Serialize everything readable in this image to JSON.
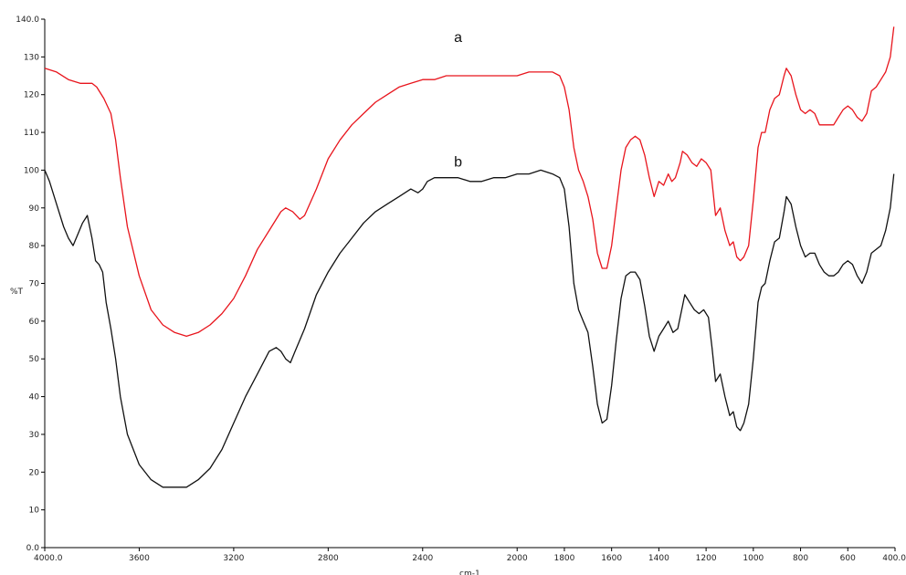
{
  "chart_data": {
    "type": "line",
    "xlabel": "cm-1",
    "ylabel": "%T",
    "xlim": [
      4000,
      400
    ],
    "ylim": [
      0,
      140
    ],
    "x_ticks": [
      "4000.0",
      "3600",
      "3200",
      "2800",
      "2400",
      "2000",
      "1600",
      "1200",
      "800",
      "400.0"
    ],
    "x_tick_values": [
      4000,
      3600,
      3200,
      2800,
      2400,
      2000,
      1600,
      1200,
      800,
      400
    ],
    "extra_x_ticks": [
      "1800",
      "1400",
      "1000",
      "600"
    ],
    "extra_x_tick_values": [
      1800,
      1400,
      1000,
      600
    ],
    "y_ticks": [
      "0.0",
      "10",
      "20",
      "30",
      "40",
      "50",
      "60",
      "70",
      "80",
      "90",
      "100",
      "110",
      "120",
      "130",
      "140.0"
    ],
    "y_tick_values": [
      0,
      10,
      20,
      30,
      40,
      50,
      60,
      70,
      80,
      90,
      100,
      110,
      120,
      130,
      140
    ],
    "grid": false,
    "series": [
      {
        "name": "a",
        "color": "#e8141c",
        "label_at": [
          2250,
          134
        ],
        "points": [
          [
            4000,
            127
          ],
          [
            3950,
            126
          ],
          [
            3900,
            124
          ],
          [
            3850,
            123
          ],
          [
            3800,
            123
          ],
          [
            3780,
            122
          ],
          [
            3750,
            119
          ],
          [
            3720,
            115
          ],
          [
            3700,
            108
          ],
          [
            3680,
            98
          ],
          [
            3650,
            85
          ],
          [
            3600,
            72
          ],
          [
            3550,
            63
          ],
          [
            3500,
            59
          ],
          [
            3450,
            57
          ],
          [
            3400,
            56
          ],
          [
            3350,
            57
          ],
          [
            3300,
            59
          ],
          [
            3250,
            62
          ],
          [
            3200,
            66
          ],
          [
            3150,
            72
          ],
          [
            3100,
            79
          ],
          [
            3050,
            84
          ],
          [
            3000,
            89
          ],
          [
            2980,
            90
          ],
          [
            2950,
            89
          ],
          [
            2920,
            87
          ],
          [
            2900,
            88
          ],
          [
            2850,
            95
          ],
          [
            2800,
            103
          ],
          [
            2750,
            108
          ],
          [
            2700,
            112
          ],
          [
            2650,
            115
          ],
          [
            2600,
            118
          ],
          [
            2550,
            120
          ],
          [
            2500,
            122
          ],
          [
            2450,
            123
          ],
          [
            2400,
            124
          ],
          [
            2380,
            124
          ],
          [
            2350,
            124
          ],
          [
            2300,
            125
          ],
          [
            2250,
            125
          ],
          [
            2200,
            125
          ],
          [
            2100,
            125
          ],
          [
            2000,
            125
          ],
          [
            1950,
            126
          ],
          [
            1900,
            126
          ],
          [
            1850,
            126
          ],
          [
            1820,
            125
          ],
          [
            1800,
            122
          ],
          [
            1780,
            116
          ],
          [
            1760,
            106
          ],
          [
            1740,
            100
          ],
          [
            1720,
            97
          ],
          [
            1700,
            93
          ],
          [
            1680,
            87
          ],
          [
            1660,
            78
          ],
          [
            1640,
            74
          ],
          [
            1620,
            74
          ],
          [
            1600,
            80
          ],
          [
            1580,
            90
          ],
          [
            1560,
            100
          ],
          [
            1540,
            106
          ],
          [
            1520,
            108
          ],
          [
            1500,
            109
          ],
          [
            1480,
            108
          ],
          [
            1460,
            104
          ],
          [
            1440,
            98
          ],
          [
            1420,
            93
          ],
          [
            1400,
            97
          ],
          [
            1380,
            96
          ],
          [
            1360,
            99
          ],
          [
            1345,
            97
          ],
          [
            1330,
            98
          ],
          [
            1310,
            102
          ],
          [
            1300,
            105
          ],
          [
            1280,
            104
          ],
          [
            1260,
            102
          ],
          [
            1240,
            101
          ],
          [
            1220,
            103
          ],
          [
            1200,
            102
          ],
          [
            1180,
            100
          ],
          [
            1160,
            88
          ],
          [
            1140,
            90
          ],
          [
            1120,
            84
          ],
          [
            1100,
            80
          ],
          [
            1085,
            81
          ],
          [
            1070,
            77
          ],
          [
            1055,
            76
          ],
          [
            1040,
            77
          ],
          [
            1020,
            80
          ],
          [
            1000,
            92
          ],
          [
            980,
            106
          ],
          [
            965,
            110
          ],
          [
            950,
            110
          ],
          [
            930,
            116
          ],
          [
            910,
            119
          ],
          [
            890,
            120
          ],
          [
            870,
            125
          ],
          [
            860,
            127
          ],
          [
            840,
            125
          ],
          [
            820,
            120
          ],
          [
            800,
            116
          ],
          [
            780,
            115
          ],
          [
            760,
            116
          ],
          [
            740,
            115
          ],
          [
            720,
            112
          ],
          [
            700,
            112
          ],
          [
            680,
            112
          ],
          [
            660,
            112
          ],
          [
            640,
            114
          ],
          [
            620,
            116
          ],
          [
            600,
            117
          ],
          [
            580,
            116
          ],
          [
            560,
            114
          ],
          [
            540,
            113
          ],
          [
            520,
            115
          ],
          [
            500,
            121
          ],
          [
            480,
            122
          ],
          [
            460,
            124
          ],
          [
            440,
            126
          ],
          [
            420,
            130
          ],
          [
            405,
            138
          ]
        ]
      },
      {
        "name": "b",
        "color": "#111111",
        "label_at": [
          2250,
          101
        ],
        "points": [
          [
            4000,
            100
          ],
          [
            3980,
            97
          ],
          [
            3950,
            91
          ],
          [
            3920,
            85
          ],
          [
            3900,
            82
          ],
          [
            3880,
            80
          ],
          [
            3860,
            83
          ],
          [
            3840,
            86
          ],
          [
            3820,
            88
          ],
          [
            3800,
            82
          ],
          [
            3785,
            76
          ],
          [
            3770,
            75
          ],
          [
            3755,
            73
          ],
          [
            3740,
            65
          ],
          [
            3720,
            58
          ],
          [
            3700,
            50
          ],
          [
            3680,
            40
          ],
          [
            3650,
            30
          ],
          [
            3600,
            22
          ],
          [
            3550,
            18
          ],
          [
            3500,
            16
          ],
          [
            3450,
            16
          ],
          [
            3400,
            16
          ],
          [
            3350,
            18
          ],
          [
            3300,
            21
          ],
          [
            3250,
            26
          ],
          [
            3200,
            33
          ],
          [
            3150,
            40
          ],
          [
            3100,
            46
          ],
          [
            3050,
            52
          ],
          [
            3020,
            53
          ],
          [
            3000,
            52
          ],
          [
            2980,
            50
          ],
          [
            2960,
            49
          ],
          [
            2940,
            52
          ],
          [
            2900,
            58
          ],
          [
            2850,
            67
          ],
          [
            2800,
            73
          ],
          [
            2750,
            78
          ],
          [
            2700,
            82
          ],
          [
            2650,
            86
          ],
          [
            2600,
            89
          ],
          [
            2550,
            91
          ],
          [
            2500,
            93
          ],
          [
            2450,
            95
          ],
          [
            2420,
            94
          ],
          [
            2400,
            95
          ],
          [
            2380,
            97
          ],
          [
            2350,
            98
          ],
          [
            2300,
            98
          ],
          [
            2250,
            98
          ],
          [
            2200,
            97
          ],
          [
            2150,
            97
          ],
          [
            2100,
            98
          ],
          [
            2050,
            98
          ],
          [
            2000,
            99
          ],
          [
            1950,
            99
          ],
          [
            1900,
            100
          ],
          [
            1850,
            99
          ],
          [
            1820,
            98
          ],
          [
            1800,
            95
          ],
          [
            1780,
            85
          ],
          [
            1760,
            70
          ],
          [
            1740,
            63
          ],
          [
            1720,
            60
          ],
          [
            1700,
            57
          ],
          [
            1680,
            48
          ],
          [
            1660,
            38
          ],
          [
            1640,
            33
          ],
          [
            1620,
            34
          ],
          [
            1600,
            43
          ],
          [
            1580,
            55
          ],
          [
            1560,
            66
          ],
          [
            1540,
            72
          ],
          [
            1520,
            73
          ],
          [
            1500,
            73
          ],
          [
            1480,
            71
          ],
          [
            1460,
            64
          ],
          [
            1440,
            56
          ],
          [
            1420,
            52
          ],
          [
            1400,
            56
          ],
          [
            1380,
            58
          ],
          [
            1360,
            60
          ],
          [
            1340,
            57
          ],
          [
            1320,
            58
          ],
          [
            1300,
            64
          ],
          [
            1290,
            67
          ],
          [
            1270,
            65
          ],
          [
            1250,
            63
          ],
          [
            1230,
            62
          ],
          [
            1210,
            63
          ],
          [
            1190,
            61
          ],
          [
            1175,
            53
          ],
          [
            1160,
            44
          ],
          [
            1140,
            46
          ],
          [
            1120,
            40
          ],
          [
            1100,
            35
          ],
          [
            1085,
            36
          ],
          [
            1070,
            32
          ],
          [
            1055,
            31
          ],
          [
            1040,
            33
          ],
          [
            1020,
            38
          ],
          [
            1000,
            50
          ],
          [
            980,
            65
          ],
          [
            965,
            69
          ],
          [
            950,
            70
          ],
          [
            930,
            76
          ],
          [
            910,
            81
          ],
          [
            890,
            82
          ],
          [
            870,
            89
          ],
          [
            860,
            93
          ],
          [
            840,
            91
          ],
          [
            820,
            85
          ],
          [
            800,
            80
          ],
          [
            780,
            77
          ],
          [
            760,
            78
          ],
          [
            740,
            78
          ],
          [
            720,
            75
          ],
          [
            700,
            73
          ],
          [
            680,
            72
          ],
          [
            660,
            72
          ],
          [
            640,
            73
          ],
          [
            620,
            75
          ],
          [
            600,
            76
          ],
          [
            580,
            75
          ],
          [
            560,
            72
          ],
          [
            540,
            70
          ],
          [
            520,
            73
          ],
          [
            500,
            78
          ],
          [
            480,
            79
          ],
          [
            460,
            80
          ],
          [
            440,
            84
          ],
          [
            420,
            90
          ],
          [
            405,
            99
          ]
        ]
      }
    ]
  }
}
